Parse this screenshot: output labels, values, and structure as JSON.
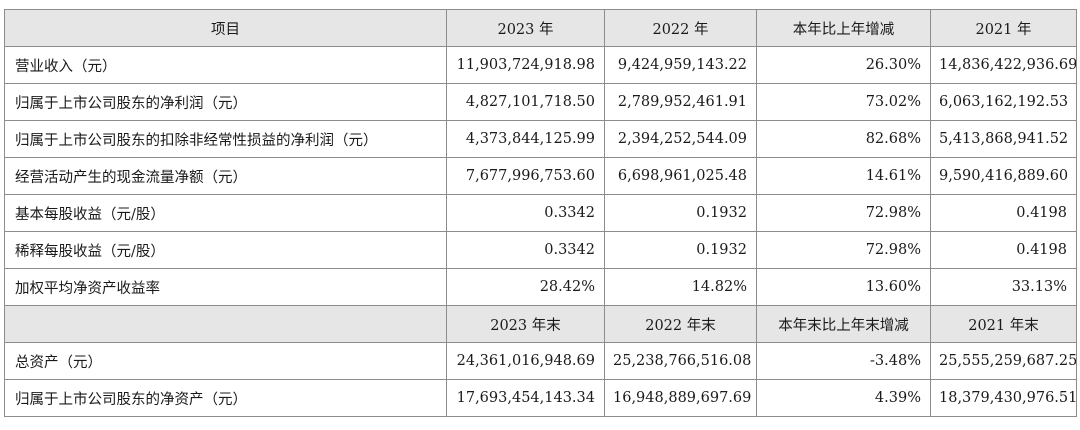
{
  "table1": {
    "headers": [
      "项目",
      "2023 年",
      "2022 年",
      "本年比上年增减",
      "2021 年"
    ],
    "rows": [
      [
        "营业收入（元）",
        "11,903,724,918.98",
        "9,424,959,143.22",
        "26.30%",
        "14,836,422,936.69"
      ],
      [
        "归属于上市公司股东的净利润（元）",
        "4,827,101,718.50",
        "2,789,952,461.91",
        "73.02%",
        "6,063,162,192.53"
      ],
      [
        "归属于上市公司股东的扣除非经常性损益的净利润（元）",
        "4,373,844,125.99",
        "2,394,252,544.09",
        "82.68%",
        "5,413,868,941.52"
      ],
      [
        "经营活动产生的现金流量净额（元）",
        "7,677,996,753.60",
        "6,698,961,025.48",
        "14.61%",
        "9,590,416,889.60"
      ],
      [
        "基本每股收益（元/股）",
        "0.3342",
        "0.1932",
        "72.98%",
        "0.4198"
      ],
      [
        "稀释每股收益（元/股）",
        "0.3342",
        "0.1932",
        "72.98%",
        "0.4198"
      ],
      [
        "加权平均净资产收益率",
        "28.42%",
        "14.82%",
        "13.60%",
        "33.13%"
      ]
    ]
  },
  "table2": {
    "headers": [
      "",
      "2023 年末",
      "2022 年末",
      "本年末比上年末增减",
      "2021 年末"
    ],
    "rows": [
      [
        "总资产（元）",
        "24,361,016,948.69",
        "25,238,766,516.08",
        "-3.48%",
        "25,555,259,687.25"
      ],
      [
        "归属于上市公司股东的净资产（元）",
        "17,693,454,143.34",
        "16,948,889,697.69",
        "4.39%",
        "18,379,430,976.51"
      ]
    ]
  }
}
